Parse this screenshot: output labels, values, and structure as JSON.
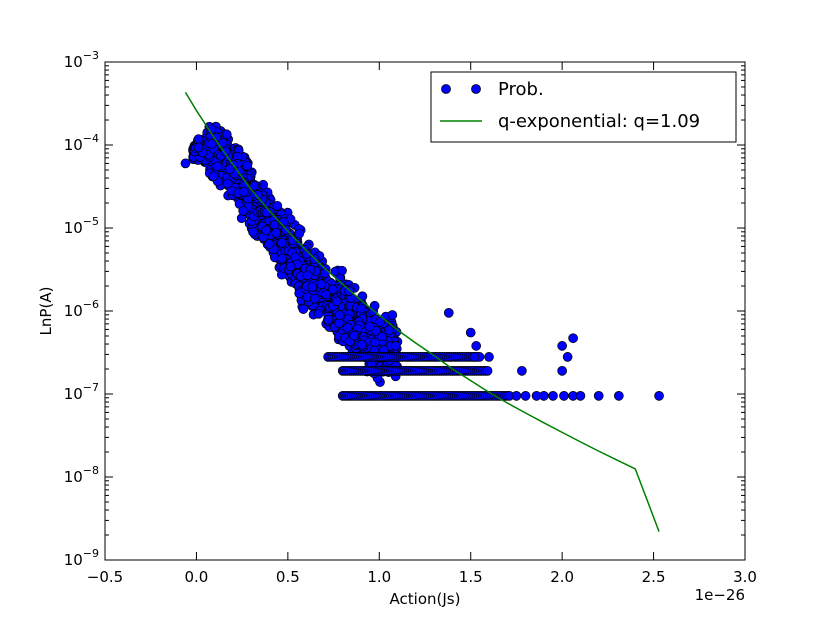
{
  "chart_data": {
    "type": "scatter",
    "xlabel": "Action(Js)",
    "ylabel": "LnP(A)",
    "x_offset_text": "1e−26",
    "x_scale_multiplier": 1e-26,
    "xlim": [
      -0.5,
      3.0
    ],
    "ylim": [
      1e-09,
      0.001
    ],
    "yscale": "log",
    "x_ticks": [
      -0.5,
      0.0,
      0.5,
      1.0,
      1.5,
      2.0,
      2.5,
      3.0
    ],
    "x_tick_labels": [
      "−0.5",
      "0.0",
      "0.5",
      "1.0",
      "1.5",
      "2.0",
      "2.5",
      "3.0"
    ],
    "y_tick_exponents": [
      -9,
      -8,
      -7,
      -6,
      -5,
      -4,
      -3
    ],
    "y_tick_base": "10",
    "grid": false,
    "legend_position": "top-right",
    "series": [
      {
        "name": "Prob.",
        "kind": "points",
        "color": "#0000ff",
        "edge_color": "#000000",
        "cloud_envelope": {
          "x": [
            -0.06,
            0.0,
            0.1,
            0.2,
            0.3,
            0.4,
            0.5,
            0.6,
            0.7,
            0.8,
            0.9,
            1.0,
            1.1
          ],
          "upper": [
            6e-05,
            0.00013,
            0.00025,
            0.00015,
            7e-05,
            3.5e-05,
            1.8e-05,
            9e-06,
            5e-06,
            4e-06,
            2e-06,
            1.5e-06,
            1e-06
          ],
          "lower": [
            6e-05,
            6e-05,
            3e-05,
            1.5e-05,
            7e-06,
            3e-06,
            1.6e-06,
            8e-07,
            5e-07,
            3e-07,
            2e-07,
            1e-07,
            1e-07
          ]
        },
        "level_rows": [
          {
            "y": 2.8e-07,
            "x_range": [
              0.72,
              1.55
            ]
          },
          {
            "y": 1.9e-07,
            "x_range": [
              0.8,
              1.6
            ]
          },
          {
            "y": 9.5e-08,
            "x_range": [
              0.8,
              1.72
            ]
          }
        ],
        "isolated_points": [
          {
            "x": -0.06,
            "y": 6e-05
          },
          {
            "x": 1.38,
            "y": 9.5e-07
          },
          {
            "x": 1.5,
            "y": 5.5e-07
          },
          {
            "x": 1.53,
            "y": 3.8e-07
          },
          {
            "x": 1.52,
            "y": 2.8e-07
          },
          {
            "x": 1.6,
            "y": 2.8e-07
          },
          {
            "x": 1.78,
            "y": 1.9e-07
          },
          {
            "x": 2.0,
            "y": 1.9e-07
          },
          {
            "x": 2.0,
            "y": 3.8e-07
          },
          {
            "x": 2.03,
            "y": 2.8e-07
          },
          {
            "x": 2.06,
            "y": 4.7e-07
          },
          {
            "x": 1.75,
            "y": 9.5e-08
          },
          {
            "x": 1.8,
            "y": 9.5e-08
          },
          {
            "x": 1.86,
            "y": 9.5e-08
          },
          {
            "x": 1.9,
            "y": 9.5e-08
          },
          {
            "x": 1.95,
            "y": 9.5e-08
          },
          {
            "x": 2.01,
            "y": 9.5e-08
          },
          {
            "x": 2.06,
            "y": 9.5e-08
          },
          {
            "x": 2.1,
            "y": 9.5e-08
          },
          {
            "x": 2.2,
            "y": 9.5e-08
          },
          {
            "x": 2.31,
            "y": 9.5e-08
          },
          {
            "x": 2.53,
            "y": 9.5e-08
          }
        ]
      },
      {
        "name": "q-exponential: q=1.09",
        "kind": "line",
        "color": "#008000",
        "x": [
          -0.06,
          0.0,
          0.1,
          0.2,
          0.3,
          0.4,
          0.5,
          0.6,
          0.7,
          0.8,
          0.9,
          1.0,
          1.1,
          1.2,
          1.3,
          1.4,
          1.5,
          1.6,
          1.7,
          1.8,
          1.9,
          2.0,
          2.1,
          2.2,
          2.3,
          2.4,
          2.53
        ],
        "y": [
          0.00043,
          0.00026,
          0.00012,
          5.8e-05,
          2.9e-05,
          1.6e-05,
          9.2e-06,
          5.4e-06,
          3.3e-06,
          2.1e-06,
          1.35e-06,
          8.9e-07,
          5.9e-07,
          4.1e-07,
          2.9e-07,
          2e-07,
          1.45e-07,
          1.05e-07,
          7.8e-08,
          5.9e-08,
          4.5e-08,
          3.45e-08,
          2.65e-08,
          2.05e-08,
          1.6e-08,
          1.25e-08,
          2.2e-09
        ]
      }
    ]
  }
}
